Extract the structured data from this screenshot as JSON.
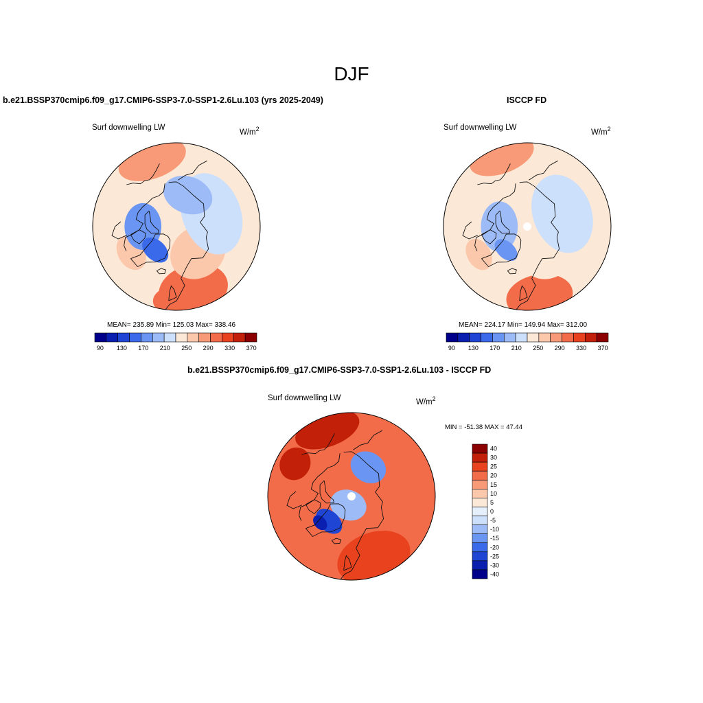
{
  "page_title": "DJF",
  "colors": {
    "palette_abs": [
      "#00008b",
      "#0a1fb0",
      "#1e45d3",
      "#3a6aea",
      "#6a95f3",
      "#9dbcf7",
      "#cde0fb",
      "#fce8d6",
      "#fbc8ac",
      "#f89a77",
      "#f26c4a",
      "#e8431e",
      "#c22008",
      "#8b0000"
    ],
    "palette_diff": [
      "#00008b",
      "#0a1fb0",
      "#1e45d3",
      "#3a6aea",
      "#6a95f3",
      "#9dbcf7",
      "#cde0fb",
      "#e6f0fc",
      "#fce8d6",
      "#fbc8ac",
      "#f89a77",
      "#f26c4a",
      "#e8431e",
      "#c22008",
      "#8b0000"
    ]
  },
  "chart_data": [
    {
      "type": "heatmap",
      "projection": "north polar stereographic",
      "panel_title": "b.e21.BSSP370cmip6.f09_g17.CMIP6-SSP3-7.0-SSP1-2.6Lu.103 (yrs 2025-2049)",
      "left_label": "Surf downwelling LW",
      "unit_base": "W/m",
      "unit_exp": "2",
      "stats": "MEAN= 235.89  Min= 125.03  Max= 338.46",
      "colorbar_levels": [
        90,
        130,
        170,
        210,
        250,
        290,
        330,
        370
      ],
      "colorbar_min": 80,
      "colorbar_max": 380,
      "regions": [
        {
          "value": 300,
          "lon": 15,
          "lat": 55,
          "rx": 0.42,
          "ry": 0.3
        },
        {
          "value": 310,
          "lon": 0,
          "lat": 50,
          "rx": 0.28,
          "ry": 0.18
        },
        {
          "value": 290,
          "lon": -160,
          "lat": 52,
          "rx": 0.42,
          "ry": 0.22
        },
        {
          "value": 270,
          "lon": -60,
          "lat": 62,
          "rx": 0.22,
          "ry": 0.16
        },
        {
          "value": 255,
          "lon": 40,
          "lat": 72,
          "rx": 0.35,
          "ry": 0.3
        },
        {
          "value": 215,
          "lon": 110,
          "lat": 70,
          "rx": 0.5,
          "ry": 0.35
        },
        {
          "value": 200,
          "lon": 160,
          "lat": 72,
          "rx": 0.3,
          "ry": 0.22
        },
        {
          "value": 180,
          "lon": -90,
          "lat": 72,
          "rx": 0.28,
          "ry": 0.22
        },
        {
          "value": 160,
          "lon": -42,
          "lat": 73,
          "rx": 0.18,
          "ry": 0.12
        }
      ]
    },
    {
      "type": "heatmap",
      "projection": "north polar stereographic",
      "panel_title": "ISCCP FD",
      "left_label": "Surf downwelling LW",
      "unit_base": "W/m",
      "unit_exp": "2",
      "stats": "MEAN= 224.17  Min= 149.94  Max= 312.00",
      "colorbar_levels": [
        90,
        130,
        170,
        210,
        250,
        290,
        330,
        370
      ],
      "colorbar_min": 80,
      "colorbar_max": 380,
      "regions": [
        {
          "value": 300,
          "lon": 10,
          "lat": 52,
          "rx": 0.4,
          "ry": 0.26
        },
        {
          "value": 285,
          "lon": -160,
          "lat": 50,
          "rx": 0.4,
          "ry": 0.2
        },
        {
          "value": 265,
          "lon": -60,
          "lat": 60,
          "rx": 0.2,
          "ry": 0.14
        },
        {
          "value": 245,
          "lon": 40,
          "lat": 72,
          "rx": 0.35,
          "ry": 0.3
        },
        {
          "value": 215,
          "lon": 110,
          "lat": 70,
          "rx": 0.48,
          "ry": 0.35
        },
        {
          "value": 195,
          "lon": -90,
          "lat": 75,
          "rx": 0.3,
          "ry": 0.22
        },
        {
          "value": 175,
          "lon": -42,
          "lat": 73,
          "rx": 0.16,
          "ry": 0.1
        }
      ]
    },
    {
      "type": "heatmap",
      "projection": "north polar stereographic",
      "panel_title": "b.e21.BSSP370cmip6.f09_g17.CMIP6-SSP3-7.0-SSP1-2.6Lu.103 - ISCCP FD",
      "left_label": "Surf downwelling LW",
      "unit_base": "W/m",
      "unit_exp": "2",
      "stats": "MIN = -51.38 MAX =  47.44",
      "colorbar_levels": [
        40,
        30,
        25,
        20,
        15,
        10,
        5,
        0,
        -5,
        -10,
        -15,
        -20,
        -25,
        -30,
        -40
      ],
      "regions": [
        {
          "value": 25,
          "lon": 20,
          "lat": 55,
          "rx": 0.45,
          "ry": 0.3
        },
        {
          "value": 30,
          "lon": -160,
          "lat": 52,
          "rx": 0.4,
          "ry": 0.2
        },
        {
          "value": 20,
          "lon": 100,
          "lat": 60,
          "rx": 0.35,
          "ry": 0.25
        },
        {
          "value": 35,
          "lon": -120,
          "lat": 55,
          "rx": 0.2,
          "ry": 0.18
        },
        {
          "value": -8,
          "lon": -20,
          "lat": 85,
          "rx": 0.22,
          "ry": 0.18
        },
        {
          "value": -15,
          "lon": 150,
          "lat": 72,
          "rx": 0.22,
          "ry": 0.18
        },
        {
          "value": -22,
          "lon": -42,
          "lat": 72,
          "rx": 0.18,
          "ry": 0.12
        },
        {
          "value": -30,
          "lon": -50,
          "lat": 68,
          "rx": 0.1,
          "ry": 0.07
        }
      ]
    }
  ]
}
